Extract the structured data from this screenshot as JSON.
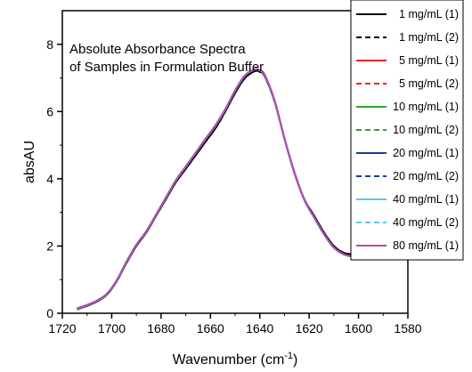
{
  "chart_data": {
    "type": "line",
    "title": "Absolute Absorbance Spectra",
    "subtitle": "of Samples in Formulation Buffer",
    "xlabel": "Wavenumber (cm",
    "xlabel_sup": "-1",
    "xlabel_end": ")",
    "ylabel": "absAU",
    "xlim": [
      1720,
      1580
    ],
    "ylim": [
      0,
      9
    ],
    "xticks": [
      1720,
      1700,
      1680,
      1660,
      1640,
      1620,
      1600,
      1580
    ],
    "yticks": [
      0,
      2,
      4,
      6,
      8
    ],
    "grid": false,
    "legend_position": "top-right",
    "x": [
      1714,
      1710,
      1706,
      1702,
      1698,
      1694,
      1690,
      1686,
      1682,
      1678,
      1674,
      1670,
      1666,
      1662,
      1658,
      1654,
      1650,
      1646,
      1642,
      1640,
      1638,
      1634,
      1630,
      1626,
      1622,
      1618,
      1614,
      1610,
      1606,
      1602,
      1598,
      1594,
      1591
    ],
    "series": [
      {
        "name": "1 mg/mL (1)",
        "color": "#000000",
        "dash": "solid",
        "values": [
          0.12,
          0.22,
          0.35,
          0.55,
          0.95,
          1.5,
          2.0,
          2.4,
          2.9,
          3.4,
          3.9,
          4.3,
          4.7,
          5.1,
          5.5,
          6.0,
          6.55,
          7.0,
          7.2,
          7.18,
          7.05,
          6.3,
          5.2,
          4.2,
          3.4,
          2.9,
          2.4,
          2.0,
          1.8,
          1.75,
          1.7,
          1.75,
          1.75
        ]
      },
      {
        "name": "1 mg/mL (2)",
        "color": "#000000",
        "dash": "dashed",
        "values": [
          0.12,
          0.22,
          0.35,
          0.55,
          0.95,
          1.5,
          2.0,
          2.4,
          2.9,
          3.4,
          3.9,
          4.3,
          4.7,
          5.1,
          5.5,
          6.0,
          6.55,
          7.0,
          7.2,
          7.18,
          7.05,
          6.3,
          5.2,
          4.2,
          3.4,
          2.9,
          2.4,
          2.0,
          1.8,
          1.74,
          1.7,
          1.74,
          1.74
        ]
      },
      {
        "name": "5 mg/mL (1)",
        "color": "#e8231e",
        "dash": "solid",
        "values": [
          0.14,
          0.24,
          0.37,
          0.57,
          0.97,
          1.53,
          2.03,
          2.43,
          2.93,
          3.44,
          3.95,
          4.36,
          4.77,
          5.18,
          5.58,
          6.06,
          6.62,
          7.07,
          7.25,
          7.22,
          7.08,
          6.32,
          5.2,
          4.18,
          3.38,
          2.85,
          2.35,
          1.95,
          1.75,
          1.68,
          1.65,
          1.67,
          1.68
        ]
      },
      {
        "name": "5 mg/mL (2)",
        "color": "#e8231e",
        "dash": "dashed",
        "values": [
          0.14,
          0.24,
          0.37,
          0.57,
          0.97,
          1.53,
          2.03,
          2.43,
          2.93,
          3.44,
          3.95,
          4.36,
          4.77,
          5.18,
          5.58,
          6.06,
          6.62,
          7.07,
          7.25,
          7.22,
          7.08,
          6.32,
          5.2,
          4.18,
          3.38,
          2.85,
          2.35,
          1.95,
          1.75,
          1.68,
          1.65,
          1.67,
          1.68
        ]
      },
      {
        "name": "10 mg/mL (1)",
        "color": "#2ea62e",
        "dash": "solid",
        "values": [
          0.14,
          0.24,
          0.37,
          0.57,
          0.97,
          1.53,
          2.03,
          2.43,
          2.93,
          3.44,
          3.95,
          4.36,
          4.77,
          5.18,
          5.58,
          6.06,
          6.62,
          7.07,
          7.25,
          7.22,
          7.08,
          6.32,
          5.2,
          4.18,
          3.38,
          2.85,
          2.35,
          1.95,
          1.75,
          1.68,
          1.65,
          1.67,
          1.68
        ]
      },
      {
        "name": "10 mg/mL (2)",
        "color": "#2ea62e",
        "dash": "dashed",
        "values": [
          0.14,
          0.24,
          0.37,
          0.57,
          0.97,
          1.53,
          2.03,
          2.43,
          2.93,
          3.44,
          3.95,
          4.36,
          4.77,
          5.18,
          5.58,
          6.06,
          6.62,
          7.07,
          7.25,
          7.22,
          7.08,
          6.32,
          5.2,
          4.18,
          3.38,
          2.85,
          2.35,
          1.95,
          1.75,
          1.68,
          1.65,
          1.67,
          1.68
        ]
      },
      {
        "name": "20 mg/mL (1)",
        "color": "#1f3a93",
        "dash": "solid",
        "values": [
          0.14,
          0.24,
          0.37,
          0.57,
          0.97,
          1.53,
          2.03,
          2.43,
          2.93,
          3.44,
          3.95,
          4.36,
          4.77,
          5.18,
          5.58,
          6.06,
          6.62,
          7.07,
          7.25,
          7.22,
          7.08,
          6.32,
          5.2,
          4.18,
          3.38,
          2.85,
          2.35,
          1.95,
          1.75,
          1.68,
          1.65,
          1.67,
          1.68
        ]
      },
      {
        "name": "20 mg/mL (2)",
        "color": "#1f3a93",
        "dash": "dashed",
        "values": [
          0.14,
          0.24,
          0.37,
          0.57,
          0.97,
          1.53,
          2.03,
          2.43,
          2.93,
          3.44,
          3.95,
          4.36,
          4.77,
          5.18,
          5.58,
          6.06,
          6.62,
          7.07,
          7.25,
          7.22,
          7.08,
          6.32,
          5.2,
          4.18,
          3.38,
          2.85,
          2.35,
          1.95,
          1.75,
          1.68,
          1.65,
          1.67,
          1.68
        ]
      },
      {
        "name": "40 mg/mL (1)",
        "color": "#5bc8f0",
        "dash": "solid",
        "values": [
          0.14,
          0.24,
          0.37,
          0.57,
          0.97,
          1.53,
          2.03,
          2.43,
          2.93,
          3.44,
          3.95,
          4.36,
          4.77,
          5.18,
          5.58,
          6.06,
          6.62,
          7.07,
          7.25,
          7.22,
          7.08,
          6.32,
          5.2,
          4.18,
          3.38,
          2.85,
          2.35,
          1.95,
          1.75,
          1.68,
          1.65,
          1.67,
          1.68
        ]
      },
      {
        "name": "40 mg/mL (2)",
        "color": "#5bc8f0",
        "dash": "dashed",
        "values": [
          0.14,
          0.24,
          0.37,
          0.57,
          0.97,
          1.53,
          2.03,
          2.43,
          2.93,
          3.44,
          3.95,
          4.36,
          4.77,
          5.18,
          5.58,
          6.06,
          6.62,
          7.07,
          7.25,
          7.22,
          7.08,
          6.32,
          5.2,
          4.18,
          3.38,
          2.85,
          2.35,
          1.95,
          1.75,
          1.68,
          1.65,
          1.67,
          1.68
        ]
      },
      {
        "name": "80 mg/mL (1)",
        "color": "#b44aa8",
        "dash": "solid",
        "values": [
          0.15,
          0.25,
          0.38,
          0.58,
          0.98,
          1.54,
          2.04,
          2.44,
          2.94,
          3.45,
          3.96,
          4.37,
          4.78,
          5.19,
          5.59,
          6.07,
          6.63,
          7.08,
          7.26,
          7.23,
          7.09,
          6.33,
          5.21,
          4.19,
          3.39,
          2.86,
          2.36,
          1.96,
          1.76,
          1.69,
          1.66,
          1.68,
          1.69
        ]
      }
    ]
  }
}
